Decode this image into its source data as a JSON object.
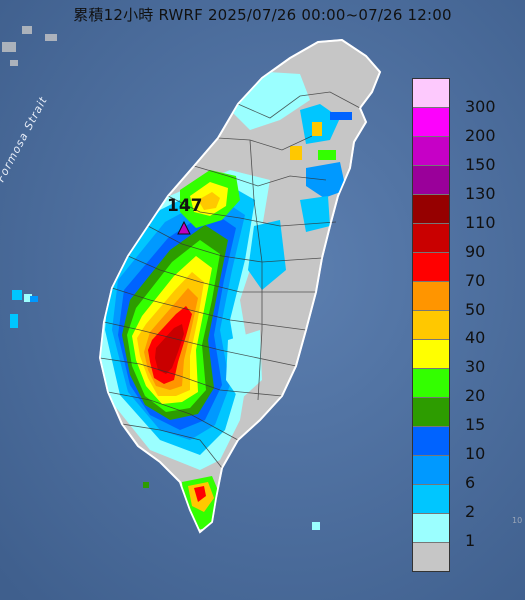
{
  "title": "累積12小時 RWRF 2025/07/26 00:00~07/26 12:00",
  "max_value_label": "147",
  "strait_label": "Formosa Strait",
  "corner_text": "10",
  "legend": {
    "levels": [
      {
        "label": "300",
        "color": "#fdc9fd"
      },
      {
        "label": "200",
        "color": "#fc02fc"
      },
      {
        "label": "150",
        "color": "#c600c6"
      },
      {
        "label": "130",
        "color": "#9a009a"
      },
      {
        "label": "110",
        "color": "#960000"
      },
      {
        "label": "90",
        "color": "#c90000"
      },
      {
        "label": "70",
        "color": "#ff0000"
      },
      {
        "label": "50",
        "color": "#ff9500"
      },
      {
        "label": "40",
        "color": "#ffc800"
      },
      {
        "label": "30",
        "color": "#ffff00"
      },
      {
        "label": "20",
        "color": "#33ff00"
      },
      {
        "label": "15",
        "color": "#2d9c00"
      },
      {
        "label": "10",
        "color": "#0063ff"
      },
      {
        "label": "6",
        "color": "#0099ff"
      },
      {
        "label": "2",
        "color": "#00c6ff"
      },
      {
        "label": "1",
        "color": "#9bffff"
      },
      {
        "label": "",
        "color": "#c6c6c6"
      }
    ]
  },
  "colors": {
    "sea": "#4e6f9e",
    "land_gray": "#c6c6c6",
    "max_marker": "#c000c0"
  }
}
